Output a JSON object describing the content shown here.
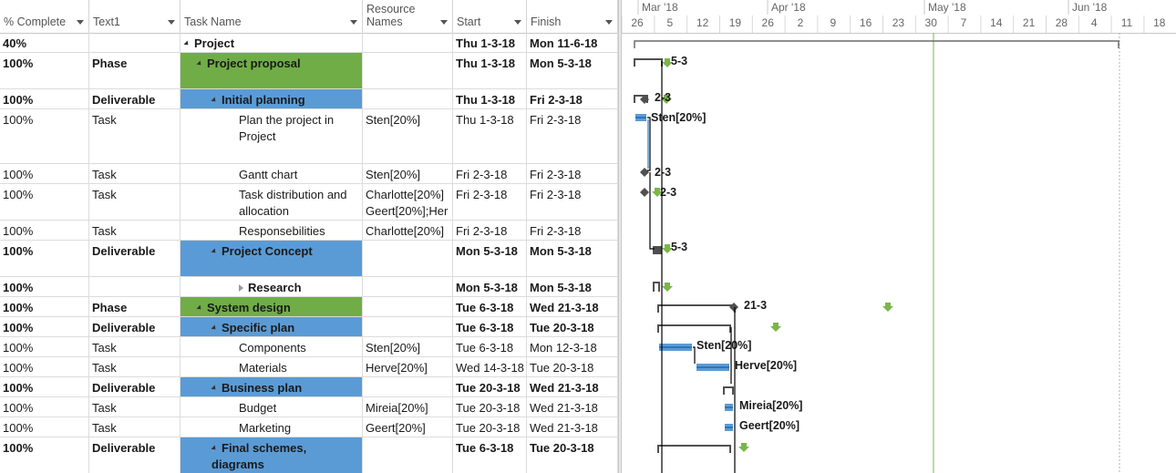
{
  "columns": [
    {
      "label": "% Complete",
      "filter": true
    },
    {
      "label": "Text1",
      "filter": true
    },
    {
      "label": "Task Name",
      "filter": true
    },
    {
      "label": "Resource\nNames",
      "filter": true
    },
    {
      "label": "Start",
      "filter": true
    },
    {
      "label": "Finish",
      "filter": true
    }
  ],
  "rows": [
    {
      "pct": "40%",
      "text1": "",
      "name": "Project",
      "indent": 0,
      "expander": "collapse",
      "res": "",
      "start": "Thu 1-3-18",
      "finish": "Mon 11-6-18",
      "bold": true,
      "fill": ""
    },
    {
      "pct": "100%",
      "text1": "Phase",
      "name": "Project proposal",
      "indent": 1,
      "expander": "collapse",
      "res": "",
      "start": "Thu 1-3-18",
      "finish": "Mon 5-3-18",
      "bold": true,
      "fill": "#70ad47"
    },
    {
      "pct": "100%",
      "text1": "Deliverable",
      "name": "Initial planning",
      "indent": 2,
      "expander": "collapse",
      "res": "",
      "start": "Thu 1-3-18",
      "finish": "Fri 2-3-18",
      "bold": true,
      "fill": "#5b9bd5"
    },
    {
      "pct": "100%",
      "text1": "Task",
      "name": "Plan the project in Project",
      "indent": 3,
      "expander": "",
      "res": "Sten[20%]",
      "start": "Thu 1-3-18",
      "finish": "Fri 2-3-18",
      "bold": false,
      "fill": ""
    },
    {
      "pct": "100%",
      "text1": "Task",
      "name": "Gantt chart",
      "indent": 3,
      "expander": "",
      "res": "Sten[20%]",
      "start": "Fri 2-3-18",
      "finish": "Fri 2-3-18",
      "bold": false,
      "fill": ""
    },
    {
      "pct": "100%",
      "text1": "Task",
      "name": "Task distribution and allocation",
      "indent": 3,
      "expander": "",
      "res": "Charlotte[20%] Geert[20%];Her",
      "start": "Fri 2-3-18",
      "finish": "Fri 2-3-18",
      "bold": false,
      "fill": ""
    },
    {
      "pct": "100%",
      "text1": "Task",
      "name": "Responsebilities",
      "indent": 3,
      "expander": "",
      "res": "Charlotte[20%]",
      "start": "Fri 2-3-18",
      "finish": "Fri 2-3-18",
      "bold": false,
      "fill": ""
    },
    {
      "pct": "100%",
      "text1": "Deliverable",
      "name": "Project Concept",
      "indent": 2,
      "expander": "collapse",
      "res": "",
      "start": "Mon 5-3-18",
      "finish": "Mon 5-3-18",
      "bold": true,
      "fill": "#5b9bd5"
    },
    {
      "pct": "100%",
      "text1": "",
      "name": "Research",
      "indent": 3,
      "expander": "expand",
      "res": "",
      "start": "Mon 5-3-18",
      "finish": "Mon 5-3-18",
      "bold": true,
      "fill": ""
    },
    {
      "pct": "100%",
      "text1": "Phase",
      "name": "System design",
      "indent": 1,
      "expander": "collapse",
      "res": "",
      "start": "Tue 6-3-18",
      "finish": "Wed 21-3-18",
      "bold": true,
      "fill": "#70ad47"
    },
    {
      "pct": "100%",
      "text1": "Deliverable",
      "name": "Specific plan",
      "indent": 2,
      "expander": "collapse",
      "res": "",
      "start": "Tue 6-3-18",
      "finish": "Tue 20-3-18",
      "bold": true,
      "fill": "#5b9bd5"
    },
    {
      "pct": "100%",
      "text1": "Task",
      "name": "Components",
      "indent": 3,
      "expander": "",
      "res": "Sten[20%]",
      "start": "Tue 6-3-18",
      "finish": "Mon 12-3-18",
      "bold": false,
      "fill": ""
    },
    {
      "pct": "100%",
      "text1": "Task",
      "name": "Materials",
      "indent": 3,
      "expander": "",
      "res": "Herve[20%]",
      "start": "Wed 14-3-18",
      "finish": "Tue 20-3-18",
      "bold": false,
      "fill": ""
    },
    {
      "pct": "100%",
      "text1": "Deliverable",
      "name": "Business plan",
      "indent": 2,
      "expander": "collapse",
      "res": "",
      "start": "Tue 20-3-18",
      "finish": "Wed 21-3-18",
      "bold": true,
      "fill": "#5b9bd5"
    },
    {
      "pct": "100%",
      "text1": "Task",
      "name": "Budget",
      "indent": 3,
      "expander": "",
      "res": "Mireia[20%]",
      "start": "Tue 20-3-18",
      "finish": "Wed 21-3-18",
      "bold": false,
      "fill": ""
    },
    {
      "pct": "100%",
      "text1": "Task",
      "name": "Marketing",
      "indent": 3,
      "expander": "",
      "res": "Geert[20%]",
      "start": "Tue 20-3-18",
      "finish": "Wed 21-3-18",
      "bold": false,
      "fill": ""
    },
    {
      "pct": "100%",
      "text1": "Deliverable",
      "name": "Final schemes, diagrams",
      "indent": 2,
      "expander": "collapse",
      "res": "",
      "start": "Tue 6-3-18",
      "finish": "Tue 20-3-18",
      "bold": true,
      "fill": "#5b9bd5"
    }
  ],
  "timeline": {
    "months": [
      "Mar '18",
      "Apr '18",
      "May '18",
      "Jun '18"
    ],
    "days": [
      "26",
      "5",
      "12",
      "19",
      "26",
      "2",
      "9",
      "16",
      "23",
      "30",
      "7",
      "14",
      "21",
      "28",
      "4",
      "11",
      "18"
    ]
  },
  "gantt": {
    "bar_labels": [
      "5-3",
      "2-3",
      "Sten[20%]",
      "2-3",
      "2-3",
      "5-3",
      "21-3",
      "Sten[20%]",
      "Herve[20%]",
      "Mireia[20%]",
      "Geert[20%]"
    ],
    "colors": {
      "task_bar": "#5b9bd5",
      "deadline_arrow": "#7ab648",
      "today_line": "#7ab648",
      "summary": "#505050"
    }
  }
}
